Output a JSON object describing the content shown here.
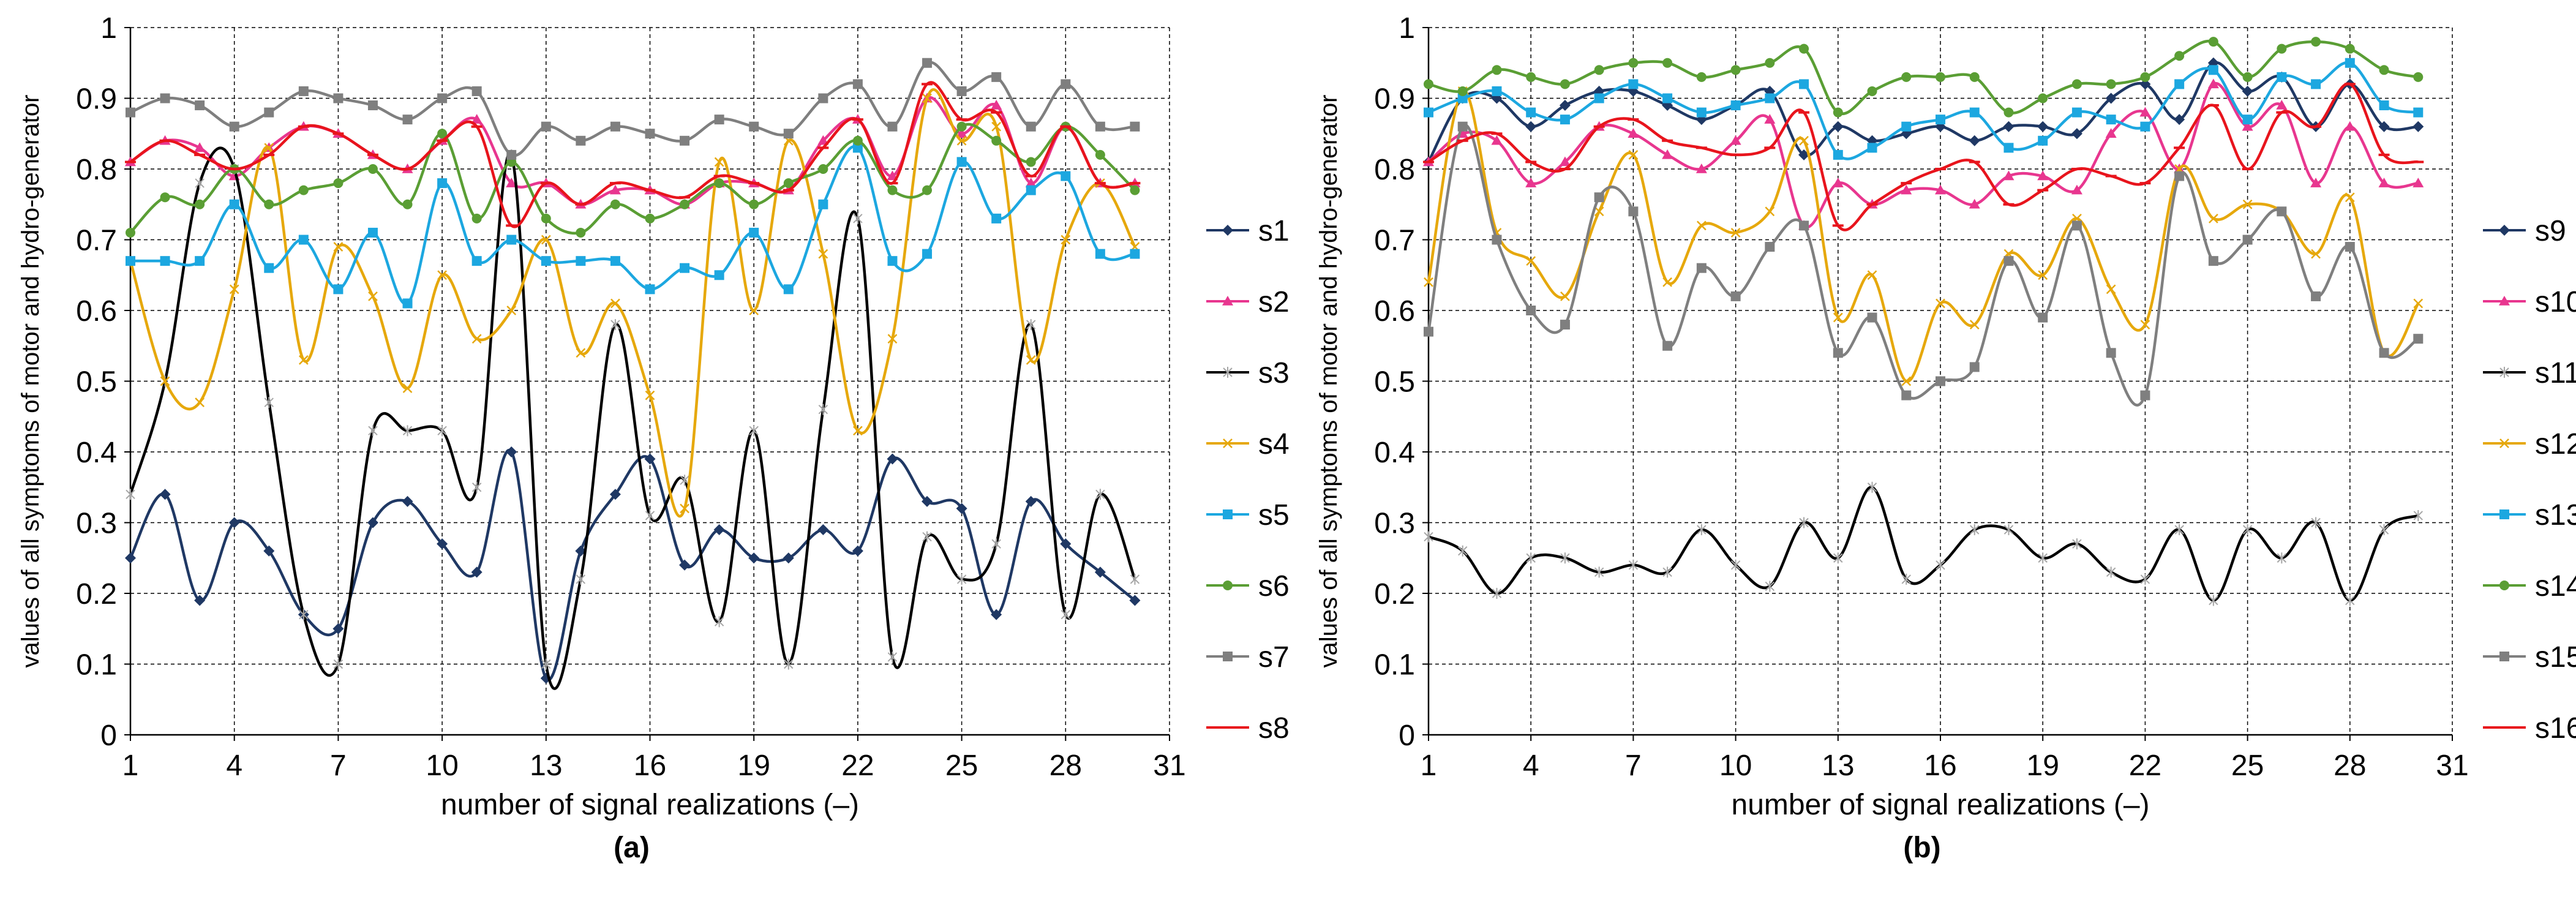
{
  "chart_data": [
    {
      "type": "line",
      "panel_label": "(a)",
      "xlabel": "number of signal realizations (–)",
      "ylabel": "values of all symptoms of motor and hydro-generator",
      "xlim": [
        1,
        31
      ],
      "ylim": [
        0,
        1
      ],
      "xticks": [
        1,
        4,
        7,
        10,
        13,
        16,
        19,
        22,
        25,
        28,
        31
      ],
      "yticks": [
        0,
        0.1,
        0.2,
        0.3,
        0.4,
        0.5,
        0.6,
        0.7,
        0.8,
        0.9,
        1
      ],
      "ytick_labels": [
        "0",
        "0.1",
        "0.2",
        "0.3",
        "0.4",
        "0.5",
        "0.6",
        "0.7",
        "0.8",
        "0.9",
        "1"
      ],
      "grid": "dashed",
      "smooth": true,
      "legend_position": "right",
      "x": [
        1,
        2,
        3,
        4,
        5,
        6,
        7,
        8,
        9,
        10,
        11,
        12,
        13,
        14,
        15,
        16,
        17,
        18,
        19,
        20,
        21,
        22,
        23,
        24,
        25,
        26,
        27,
        28,
        29,
        30
      ],
      "series": [
        {
          "name": "s1",
          "color": "#1f3864",
          "marker": "diamond",
          "values": [
            0.25,
            0.34,
            0.19,
            0.3,
            0.26,
            0.17,
            0.15,
            0.3,
            0.33,
            0.27,
            0.23,
            0.4,
            0.08,
            0.26,
            0.34,
            0.39,
            0.24,
            0.29,
            0.25,
            0.25,
            0.29,
            0.26,
            0.39,
            0.33,
            0.32,
            0.17,
            0.33,
            0.27,
            0.23,
            0.19
          ]
        },
        {
          "name": "s2",
          "color": "#e8368f",
          "marker": "triangle",
          "values": [
            0.81,
            0.84,
            0.83,
            0.79,
            0.83,
            0.86,
            0.85,
            0.82,
            0.8,
            0.84,
            0.87,
            0.78,
            0.78,
            0.75,
            0.77,
            0.77,
            0.75,
            0.78,
            0.78,
            0.77,
            0.84,
            0.87,
            0.79,
            0.9,
            0.85,
            0.89,
            0.78,
            0.86,
            0.78,
            0.78
          ]
        },
        {
          "name": "s3",
          "color": "#000000",
          "marker": "star",
          "values": [
            0.34,
            0.5,
            0.78,
            0.8,
            0.47,
            0.17,
            0.1,
            0.43,
            0.43,
            0.43,
            0.35,
            0.82,
            0.1,
            0.22,
            0.58,
            0.31,
            0.36,
            0.16,
            0.43,
            0.1,
            0.46,
            0.73,
            0.11,
            0.28,
            0.22,
            0.27,
            0.58,
            0.17,
            0.34,
            0.22
          ]
        },
        {
          "name": "s4",
          "color": "#e6a80c",
          "marker": "x",
          "values": [
            0.67,
            0.5,
            0.47,
            0.63,
            0.83,
            0.53,
            0.69,
            0.62,
            0.49,
            0.65,
            0.56,
            0.6,
            0.7,
            0.54,
            0.61,
            0.48,
            0.32,
            0.81,
            0.6,
            0.84,
            0.68,
            0.43,
            0.56,
            0.9,
            0.84,
            0.86,
            0.53,
            0.7,
            0.78,
            0.69
          ]
        },
        {
          "name": "s5",
          "color": "#1ca7e0",
          "marker": "square",
          "values": [
            0.67,
            0.67,
            0.67,
            0.75,
            0.66,
            0.7,
            0.63,
            0.71,
            0.61,
            0.78,
            0.67,
            0.7,
            0.67,
            0.67,
            0.67,
            0.63,
            0.66,
            0.65,
            0.71,
            0.63,
            0.75,
            0.83,
            0.67,
            0.68,
            0.81,
            0.73,
            0.77,
            0.79,
            0.68,
            0.68
          ]
        },
        {
          "name": "s6",
          "color": "#5a9e34",
          "marker": "circle",
          "values": [
            0.71,
            0.76,
            0.75,
            0.8,
            0.75,
            0.77,
            0.78,
            0.8,
            0.75,
            0.85,
            0.73,
            0.81,
            0.73,
            0.71,
            0.75,
            0.73,
            0.75,
            0.78,
            0.75,
            0.78,
            0.8,
            0.84,
            0.77,
            0.77,
            0.86,
            0.84,
            0.81,
            0.86,
            0.82,
            0.77
          ]
        },
        {
          "name": "s7",
          "color": "#7f7f7f",
          "marker": "square",
          "values": [
            0.88,
            0.9,
            0.89,
            0.86,
            0.88,
            0.91,
            0.9,
            0.89,
            0.87,
            0.9,
            0.91,
            0.82,
            0.86,
            0.84,
            0.86,
            0.85,
            0.84,
            0.87,
            0.86,
            0.85,
            0.9,
            0.92,
            0.86,
            0.95,
            0.91,
            0.93,
            0.86,
            0.92,
            0.86,
            0.86
          ]
        },
        {
          "name": "s8",
          "color": "#e8141c",
          "marker": "dash",
          "values": [
            0.81,
            0.84,
            0.82,
            0.8,
            0.82,
            0.86,
            0.85,
            0.82,
            0.8,
            0.84,
            0.86,
            0.72,
            0.78,
            0.75,
            0.78,
            0.77,
            0.76,
            0.79,
            0.78,
            0.77,
            0.83,
            0.87,
            0.78,
            0.92,
            0.87,
            0.88,
            0.79,
            0.86,
            0.78,
            0.78
          ]
        }
      ]
    },
    {
      "type": "line",
      "panel_label": "(b)",
      "xlabel": "number of signal realizations (–)",
      "ylabel": "values of all symptoms of motor and hydro-generator",
      "xlim": [
        1,
        31
      ],
      "ylim": [
        0,
        1
      ],
      "xticks": [
        1,
        4,
        7,
        10,
        13,
        16,
        19,
        22,
        25,
        28,
        31
      ],
      "yticks": [
        0,
        0.1,
        0.2,
        0.3,
        0.4,
        0.5,
        0.6,
        0.7,
        0.8,
        0.9,
        1
      ],
      "ytick_labels": [
        "0",
        "0.1",
        "0.2",
        "0.3",
        "0.4",
        "0.5",
        "0.6",
        "0.7",
        "0.8",
        "0.9",
        "1"
      ],
      "grid": "dashed",
      "smooth": true,
      "legend_position": "right",
      "x": [
        1,
        2,
        3,
        4,
        5,
        6,
        7,
        8,
        9,
        10,
        11,
        12,
        13,
        14,
        15,
        16,
        17,
        18,
        19,
        20,
        21,
        22,
        23,
        24,
        25,
        26,
        27,
        28,
        29,
        30
      ],
      "series": [
        {
          "name": "s9",
          "color": "#1f3864",
          "marker": "diamond",
          "values": [
            0.81,
            0.9,
            0.9,
            0.86,
            0.89,
            0.91,
            0.91,
            0.89,
            0.87,
            0.89,
            0.91,
            0.82,
            0.86,
            0.84,
            0.85,
            0.86,
            0.84,
            0.86,
            0.86,
            0.85,
            0.9,
            0.92,
            0.87,
            0.95,
            0.91,
            0.93,
            0.86,
            0.92,
            0.86,
            0.86
          ]
        },
        {
          "name": "s10",
          "color": "#e8368f",
          "marker": "triangle",
          "values": [
            0.81,
            0.85,
            0.84,
            0.78,
            0.81,
            0.86,
            0.85,
            0.82,
            0.8,
            0.84,
            0.87,
            0.72,
            0.78,
            0.75,
            0.77,
            0.77,
            0.75,
            0.79,
            0.79,
            0.77,
            0.85,
            0.88,
            0.8,
            0.92,
            0.86,
            0.89,
            0.78,
            0.86,
            0.78,
            0.78
          ]
        },
        {
          "name": "s11",
          "color": "#000000",
          "marker": "star",
          "values": [
            0.28,
            0.26,
            0.2,
            0.25,
            0.25,
            0.23,
            0.24,
            0.23,
            0.29,
            0.24,
            0.21,
            0.3,
            0.25,
            0.35,
            0.22,
            0.24,
            0.29,
            0.29,
            0.25,
            0.27,
            0.23,
            0.22,
            0.29,
            0.19,
            0.29,
            0.25,
            0.3,
            0.19,
            0.29,
            0.31
          ]
        },
        {
          "name": "s12",
          "color": "#e6a80c",
          "marker": "x",
          "values": [
            0.64,
            0.91,
            0.71,
            0.67,
            0.62,
            0.74,
            0.82,
            0.64,
            0.72,
            0.71,
            0.74,
            0.84,
            0.59,
            0.65,
            0.5,
            0.61,
            0.58,
            0.68,
            0.65,
            0.73,
            0.63,
            0.58,
            0.8,
            0.73,
            0.75,
            0.74,
            0.68,
            0.76,
            0.54,
            0.61
          ]
        },
        {
          "name": "s13",
          "color": "#1ca7e0",
          "marker": "square",
          "values": [
            0.88,
            0.9,
            0.91,
            0.88,
            0.87,
            0.9,
            0.92,
            0.9,
            0.88,
            0.89,
            0.9,
            0.92,
            0.82,
            0.83,
            0.86,
            0.87,
            0.88,
            0.83,
            0.84,
            0.88,
            0.87,
            0.86,
            0.92,
            0.94,
            0.87,
            0.93,
            0.92,
            0.95,
            0.89,
            0.88
          ]
        },
        {
          "name": "s14",
          "color": "#5a9e34",
          "marker": "circle",
          "values": [
            0.92,
            0.91,
            0.94,
            0.93,
            0.92,
            0.94,
            0.95,
            0.95,
            0.93,
            0.94,
            0.95,
            0.97,
            0.88,
            0.91,
            0.93,
            0.93,
            0.93,
            0.88,
            0.9,
            0.92,
            0.92,
            0.93,
            0.96,
            0.98,
            0.93,
            0.97,
            0.98,
            0.97,
            0.94,
            0.93
          ]
        },
        {
          "name": "s15",
          "color": "#7f7f7f",
          "marker": "square",
          "values": [
            0.57,
            0.86,
            0.7,
            0.6,
            0.58,
            0.76,
            0.74,
            0.55,
            0.66,
            0.62,
            0.69,
            0.72,
            0.54,
            0.59,
            0.48,
            0.5,
            0.52,
            0.67,
            0.59,
            0.72,
            0.54,
            0.48,
            0.79,
            0.67,
            0.7,
            0.74,
            0.62,
            0.69,
            0.54,
            0.56
          ]
        },
        {
          "name": "s16",
          "color": "#e8141c",
          "marker": "dash",
          "values": [
            0.81,
            0.84,
            0.85,
            0.81,
            0.8,
            0.86,
            0.87,
            0.84,
            0.83,
            0.82,
            0.83,
            0.88,
            0.72,
            0.75,
            0.78,
            0.8,
            0.81,
            0.75,
            0.77,
            0.8,
            0.79,
            0.78,
            0.83,
            0.89,
            0.8,
            0.88,
            0.86,
            0.92,
            0.82,
            0.81
          ]
        }
      ]
    }
  ]
}
